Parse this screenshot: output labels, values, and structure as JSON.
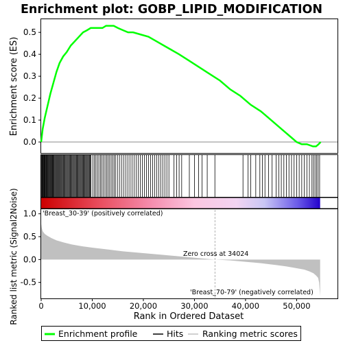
{
  "title": "Enrichment plot: GOBP_LIPID_MODIFICATION",
  "colors": {
    "es_line": "#00ff00",
    "hits": "#000000",
    "metric_fill": "#c0c0c0",
    "pos_label": "#cc0000",
    "neg_label": "#0000cc",
    "zero_marker": "#b0b0b0"
  },
  "chart_data": [
    {
      "type": "line",
      "panel": "enrichment_score",
      "ylabel": "Enrichment score (ES)",
      "xlim": [
        0,
        58000
      ],
      "ylim": [
        -0.05,
        0.56
      ],
      "y_ticks": [
        0.0,
        0.1,
        0.2,
        0.3,
        0.4,
        0.5
      ],
      "y_tick_labels": [
        "0.0",
        "0.1",
        "0.2",
        "0.3",
        "0.4",
        "0.5"
      ],
      "grid": false,
      "series": [
        {
          "name": "Enrichment profile",
          "x": [
            0,
            300,
            700,
            1200,
            1800,
            2400,
            3000,
            3600,
            4300,
            5000,
            5800,
            6600,
            7400,
            8200,
            9000,
            9700,
            10500,
            11300,
            12000,
            12700,
            13400,
            14200,
            15000,
            16000,
            17000,
            18000,
            19500,
            21000,
            22500,
            24000,
            25500,
            27000,
            29000,
            31000,
            33000,
            35000,
            37000,
            39000,
            41000,
            43000,
            44500,
            46000,
            47500,
            49000,
            50000,
            51000,
            52000,
            53200,
            53800,
            54300,
            54700
          ],
          "y": [
            0.0,
            0.06,
            0.11,
            0.16,
            0.22,
            0.27,
            0.32,
            0.36,
            0.39,
            0.41,
            0.44,
            0.46,
            0.48,
            0.5,
            0.51,
            0.52,
            0.52,
            0.52,
            0.52,
            0.53,
            0.53,
            0.53,
            0.52,
            0.51,
            0.5,
            0.5,
            0.49,
            0.48,
            0.46,
            0.44,
            0.42,
            0.4,
            0.37,
            0.34,
            0.31,
            0.28,
            0.24,
            0.21,
            0.17,
            0.14,
            0.11,
            0.08,
            0.05,
            0.02,
            0.0,
            -0.01,
            -0.01,
            -0.02,
            -0.02,
            -0.01,
            0.0
          ]
        }
      ]
    },
    {
      "type": "scatter",
      "panel": "hits",
      "series": [
        {
          "name": "Hits",
          "x": [
            80,
            160,
            260,
            360,
            460,
            560,
            660,
            760,
            860,
            980,
            1080,
            1200,
            1320,
            1440,
            1560,
            1680,
            1800,
            1920,
            2040,
            2160,
            2280,
            2400,
            2520,
            2660,
            2800,
            2940,
            3080,
            3220,
            3360,
            3500,
            3640,
            3780,
            3920,
            4060,
            4200,
            4350,
            4500,
            4650,
            4800,
            4950,
            5100,
            5250,
            5400,
            5550,
            5700,
            5850,
            6000,
            6150,
            6300,
            6450,
            6600,
            6750,
            6900,
            7050,
            7200,
            7350,
            7500,
            7650,
            7800,
            7950,
            8100,
            8250,
            8400,
            8550,
            8700,
            8850,
            9000,
            9150,
            9300,
            9450,
            9600,
            9750,
            10100,
            10400,
            10700,
            11000,
            11300,
            11600,
            11900,
            12200,
            12500,
            12800,
            13100,
            13400,
            13700,
            14000,
            14300,
            14600,
            15000,
            15400,
            15800,
            16200,
            16600,
            17000,
            17400,
            17800,
            18200,
            18600,
            19000,
            19400,
            19800,
            20200,
            20600,
            21000,
            21400,
            21800,
            22200,
            22600,
            23000,
            23400,
            23800,
            24200,
            24600,
            25000,
            26000,
            26500,
            27000,
            27500,
            29000,
            30000,
            30800,
            31500,
            32500,
            34000,
            39500,
            40500,
            41000,
            42000,
            42800,
            43300,
            43800,
            44500,
            45200,
            46000,
            46500,
            47000,
            47500,
            48000,
            48500,
            49000,
            49500,
            50000,
            50500,
            51000,
            51500,
            52000,
            52500,
            53000,
            53300,
            53600,
            53900,
            54200,
            54500
          ]
        }
      ]
    },
    {
      "type": "area",
      "panel": "ranked_metric",
      "xlabel": "Rank in Ordered Dataset",
      "ylabel": "Ranked list metric (Signal2Noise)",
      "xlim": [
        0,
        58000
      ],
      "ylim": [
        -0.85,
        1.1
      ],
      "x_ticks": [
        0,
        10000,
        20000,
        30000,
        40000,
        50000
      ],
      "x_tick_labels": [
        "0",
        "10,000",
        "20,000",
        "30,000",
        "40,000",
        "50,000"
      ],
      "y_ticks": [
        -0.5,
        0.0,
        0.5,
        1.0
      ],
      "y_tick_labels": [
        "-0.5",
        "0.0",
        "0.5",
        "1.0"
      ],
      "series": [
        {
          "name": "Ranking metric scores",
          "x": [
            0,
            100,
            300,
            700,
            1200,
            2000,
            3000,
            4500,
            6000,
            8000,
            10000,
            13000,
            16000,
            20000,
            24000,
            28000,
            31000,
            34024,
            37000,
            40000,
            43000,
            46000,
            48000,
            50000,
            51500,
            52500,
            53300,
            53800,
            54200,
            54400,
            54500,
            54600
          ],
          "y": [
            0.78,
            0.7,
            0.62,
            0.56,
            0.52,
            0.47,
            0.42,
            0.37,
            0.33,
            0.29,
            0.26,
            0.22,
            0.18,
            0.14,
            0.1,
            0.06,
            0.03,
            0.0,
            -0.02,
            -0.05,
            -0.08,
            -0.12,
            -0.15,
            -0.19,
            -0.22,
            -0.26,
            -0.3,
            -0.35,
            -0.4,
            -0.5,
            -0.65,
            -0.8
          ]
        }
      ]
    }
  ],
  "annotations": {
    "positive": "'Breast_30-39' (positively correlated)",
    "negative": "'Breast_70-79' (negatively correlated)",
    "zero_cross": "Zero cross at 34024"
  },
  "legend": {
    "items": [
      {
        "label": "Enrichment profile",
        "color": "#00ff00"
      },
      {
        "label": "Hits",
        "color": "#000000"
      },
      {
        "label": "Ranking metric scores",
        "color": "#c0c0c0"
      }
    ]
  }
}
